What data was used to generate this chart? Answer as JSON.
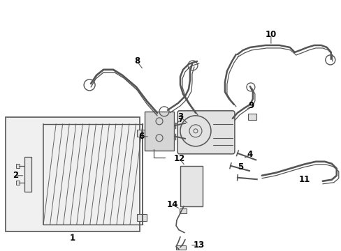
{
  "bg_color": "#ffffff",
  "line_color": "#555555",
  "label_color": "#000000",
  "figsize": [
    4.89,
    3.6
  ],
  "dpi": 100
}
